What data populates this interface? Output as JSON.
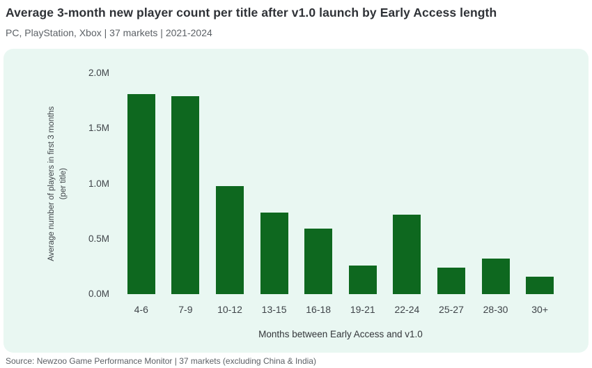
{
  "header": {
    "title": "Average 3-month new player count per title after v1.0 launch by Early Access length",
    "subtitle": "PC, PlayStation, Xbox | 37 markets | 2021-2024"
  },
  "chart_data": {
    "type": "bar",
    "title": "Average 3-month new player count per title after v1.0 launch by Early Access length",
    "subtitle": "PC, PlayStation, Xbox | 37 markets | 2021-2024",
    "categories": [
      "4-6",
      "7-9",
      "10-12",
      "13-15",
      "16-18",
      "19-21",
      "22-24",
      "25-27",
      "28-30",
      "30+"
    ],
    "values": [
      1.81,
      1.79,
      0.98,
      0.74,
      0.59,
      0.26,
      0.72,
      0.24,
      0.32,
      0.16
    ],
    "values_unit": "M players",
    "xlabel": "Months between Early Access and v1.0",
    "ylabel_lines": [
      "Average number of players in first 3 months",
      "(per title)"
    ],
    "ylim": [
      0,
      2.0
    ],
    "yticks": [
      "2.0M",
      "1.5M",
      "1.0M",
      "0.5M",
      "0.0M"
    ],
    "grid": false,
    "legend_position": "none",
    "bar_color": "#0e681f",
    "panel_background": "#e9f7f2"
  },
  "footer": {
    "source": "Source: Newzoo Game Performance Monitor | 37 markets (excluding China & India)"
  }
}
